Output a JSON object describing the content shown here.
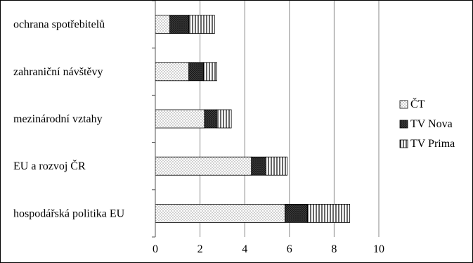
{
  "chart_data": {
    "type": "bar",
    "orientation": "horizontal",
    "stacked": true,
    "categories": [
      "ochrana spotřebitelů",
      "zahraniční návštěvy",
      "mezinárodní vztahy",
      "EU a rozvoj ČR",
      "hospodářská politika EU"
    ],
    "series": [
      {
        "name": "ČT",
        "values": [
          0.65,
          1.5,
          2.2,
          4.3,
          5.8
        ],
        "pattern": "dots"
      },
      {
        "name": "TV Nova",
        "values": [
          0.85,
          0.65,
          0.55,
          0.65,
          1.0
        ],
        "pattern": "crosshatch"
      },
      {
        "name": "TV Prima",
        "values": [
          1.15,
          0.6,
          0.65,
          0.95,
          1.9
        ],
        "pattern": "vertical-lines"
      }
    ],
    "xlim": [
      0,
      10
    ],
    "xticks": [
      "0",
      "2",
      "4",
      "6",
      "8",
      "10"
    ],
    "grid": "vertical",
    "legend_position": "right",
    "title": "",
    "xlabel": "",
    "ylabel": ""
  }
}
